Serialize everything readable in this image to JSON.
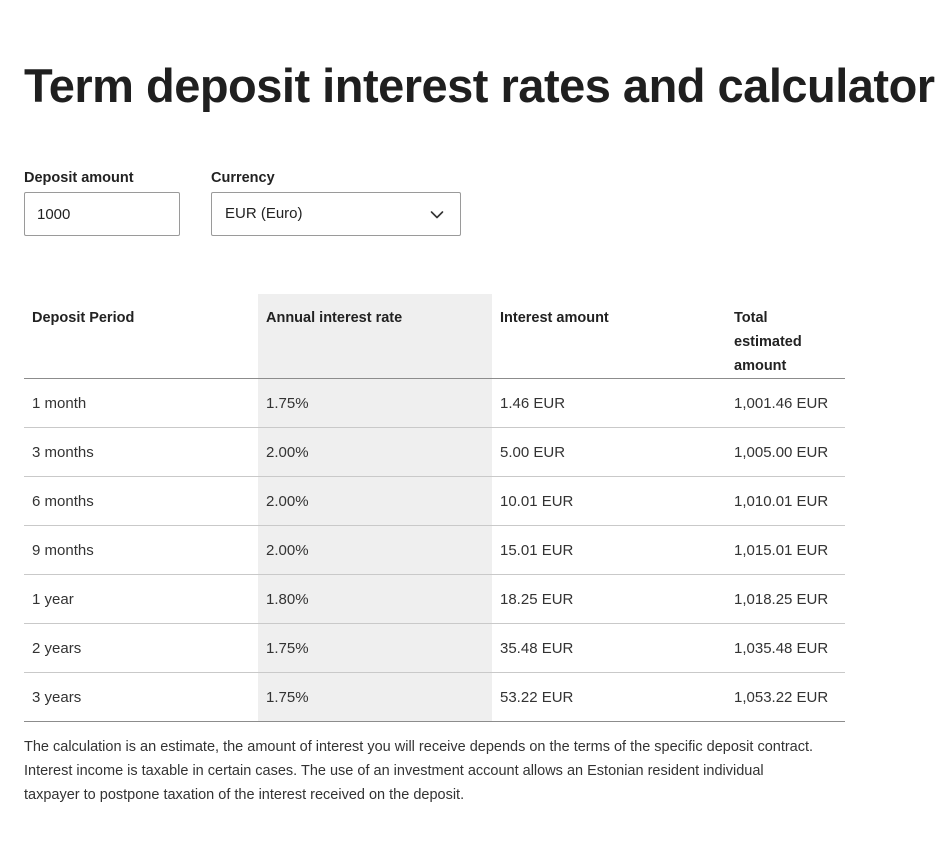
{
  "page": {
    "title": "Term deposit interest rates and calculator"
  },
  "form": {
    "amount_label": "Deposit amount",
    "amount_value": "1000",
    "currency_label": "Currency",
    "currency_value": "EUR (Euro)"
  },
  "table": {
    "headers": [
      "Deposit Period",
      "Annual interest rate",
      "Interest amount",
      "Total estimated amount"
    ],
    "rows": [
      [
        "1 month",
        "1.75%",
        "1.46 EUR",
        "1,001.46 EUR"
      ],
      [
        "3 months",
        "2.00%",
        "5.00 EUR",
        "1,005.00 EUR"
      ],
      [
        "6 months",
        "2.00%",
        "10.01 EUR",
        "1,010.01 EUR"
      ],
      [
        "9 months",
        "2.00%",
        "15.01 EUR",
        "1,015.01 EUR"
      ],
      [
        "1 year",
        "1.80%",
        "18.25 EUR",
        "1,018.25 EUR"
      ],
      [
        "2 years",
        "1.75%",
        "35.48 EUR",
        "1,035.48 EUR"
      ],
      [
        "3 years",
        "1.75%",
        "53.22 EUR",
        "1,053.22 EUR"
      ]
    ]
  },
  "disclaimer": "The calculation is an estimate, the amount of interest you will receive depends on the terms of the specific deposit contract. Interest income is taxable in certain cases. The use of an investment account allows an Estonian resident individual taxpayer to postpone taxation of the interest received on the deposit.",
  "icons": {
    "dropdown": "chevron-down-icon"
  },
  "colors": {
    "highlight_column": "#efefef",
    "text": "#222222",
    "border": "#9a9a9a"
  }
}
